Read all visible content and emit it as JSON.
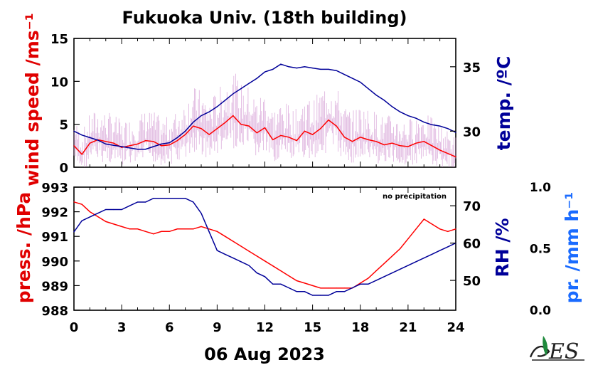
{
  "title": "Fukuoka Univ. (18th building)",
  "date_label": "06 Aug 2023",
  "precip_note": "no precipitation",
  "colors": {
    "wind_mean": "#ff0000",
    "wind_raw": "#cc88cc",
    "temp": "#000099",
    "pressure": "#ff0000",
    "rh": "#000099",
    "precip_label": "#1a6bff"
  },
  "chart_data": [
    {
      "type": "line",
      "panel": "top",
      "x": [
        0,
        0.5,
        1,
        1.5,
        2,
        2.5,
        3,
        3.5,
        4,
        4.5,
        5,
        5.5,
        6,
        6.5,
        7,
        7.5,
        8,
        8.5,
        9,
        9.5,
        10,
        10.5,
        11,
        11.5,
        12,
        12.5,
        13,
        13.5,
        14,
        14.5,
        15,
        15.5,
        16,
        16.5,
        17,
        17.5,
        18,
        18.5,
        19,
        19.5,
        20,
        20.5,
        21,
        21.5,
        22,
        22.5,
        23,
        23.5,
        24
      ],
      "xlim": [
        0,
        24
      ],
      "xticks": [
        "0",
        "3",
        "6",
        "9",
        "12",
        "15",
        "18",
        "21",
        "24"
      ],
      "left_axis": {
        "label": "wind speed /ms⁻¹",
        "ylim": [
          0,
          15
        ],
        "ticks": [
          "0",
          "5",
          "10",
          "15"
        ]
      },
      "right_axis": {
        "label": "temp. /ºC",
        "ylim": [
          27.2,
          37.2
        ],
        "ticks": [
          "30",
          "35"
        ]
      },
      "series": [
        {
          "axis": "left",
          "values": [
            2.5,
            1.5,
            2.8,
            3.2,
            3.0,
            2.8,
            2.3,
            2.5,
            2.7,
            3.1,
            3.0,
            2.5,
            2.6,
            3.1,
            3.8,
            4.8,
            4.5,
            3.8,
            4.5,
            5.2,
            6.0,
            5.0,
            4.8,
            4.0,
            4.6,
            3.2,
            3.7,
            3.5,
            3.1,
            4.2,
            3.8,
            4.5,
            5.5,
            4.8,
            3.5,
            3.0,
            3.5,
            3.2,
            3.0,
            2.6,
            2.8,
            2.5,
            2.4,
            2.8,
            3.0,
            2.5,
            2.0,
            1.6,
            1.2
          ]
        },
        {
          "axis": "right",
          "values": [
            30.0,
            29.7,
            29.5,
            29.3,
            29.0,
            28.9,
            28.8,
            28.7,
            28.6,
            28.6,
            28.8,
            29.0,
            29.1,
            29.5,
            30.0,
            30.7,
            31.2,
            31.5,
            31.9,
            32.4,
            32.9,
            33.3,
            33.7,
            34.1,
            34.6,
            34.8,
            35.2,
            35.0,
            34.9,
            35.0,
            34.9,
            34.8,
            34.8,
            34.7,
            34.4,
            34.1,
            33.8,
            33.3,
            32.8,
            32.4,
            31.9,
            31.5,
            31.2,
            31.0,
            30.7,
            30.5,
            30.4,
            30.2,
            29.9
          ]
        }
      ]
    },
    {
      "type": "line",
      "panel": "bottom",
      "x": [
        0,
        0.5,
        1,
        1.5,
        2,
        2.5,
        3,
        3.5,
        4,
        4.5,
        5,
        5.5,
        6,
        6.5,
        7,
        7.5,
        8,
        8.5,
        9,
        9.5,
        10,
        10.5,
        11,
        11.5,
        12,
        12.5,
        13,
        13.5,
        14,
        14.5,
        15,
        15.5,
        16,
        16.5,
        17,
        17.5,
        18,
        18.5,
        19,
        19.5,
        20,
        20.5,
        21,
        21.5,
        22,
        22.5,
        23,
        23.5,
        24
      ],
      "xlim": [
        0,
        24
      ],
      "xticks": [
        "0",
        "3",
        "6",
        "9",
        "12",
        "15",
        "18",
        "21",
        "24"
      ],
      "left_axis": {
        "label": "press. /hPa",
        "ylim": [
          988,
          993
        ],
        "ticks": [
          "988",
          "989",
          "990",
          "991",
          "992",
          "993"
        ]
      },
      "right_axis": {
        "label": "RH /%",
        "ylim": [
          42,
          75
        ],
        "ticks": [
          "50",
          "60",
          "70"
        ]
      },
      "precip_axis": {
        "label": "pr. /mm h⁻¹",
        "ylim": [
          0.0,
          1.0
        ],
        "ticks": [
          "0.0",
          "0.5",
          "1.0"
        ]
      },
      "series": [
        {
          "axis": "left",
          "values": [
            992.4,
            992.3,
            992.0,
            991.8,
            991.6,
            991.5,
            991.4,
            991.3,
            991.3,
            991.2,
            991.1,
            991.2,
            991.2,
            991.3,
            991.3,
            991.3,
            991.4,
            991.3,
            991.2,
            991.0,
            990.8,
            990.6,
            990.4,
            990.2,
            990.0,
            989.8,
            989.6,
            989.4,
            989.2,
            989.1,
            989.0,
            988.9,
            988.9,
            988.9,
            988.9,
            988.9,
            989.1,
            989.3,
            989.6,
            989.9,
            990.2,
            990.5,
            990.9,
            991.3,
            991.7,
            991.5,
            991.3,
            991.2,
            991.3
          ]
        },
        {
          "axis": "right",
          "values": [
            63,
            66,
            67,
            68,
            69,
            69,
            69,
            70,
            71,
            71,
            72,
            72,
            72,
            72,
            72,
            71,
            68,
            63,
            58,
            57,
            56,
            55,
            54,
            52,
            51,
            49,
            49,
            48,
            47,
            47,
            46,
            46,
            46,
            47,
            47,
            48,
            49,
            49,
            50,
            51,
            52,
            53,
            54,
            55,
            56,
            57,
            58,
            59,
            60
          ]
        }
      ]
    }
  ]
}
